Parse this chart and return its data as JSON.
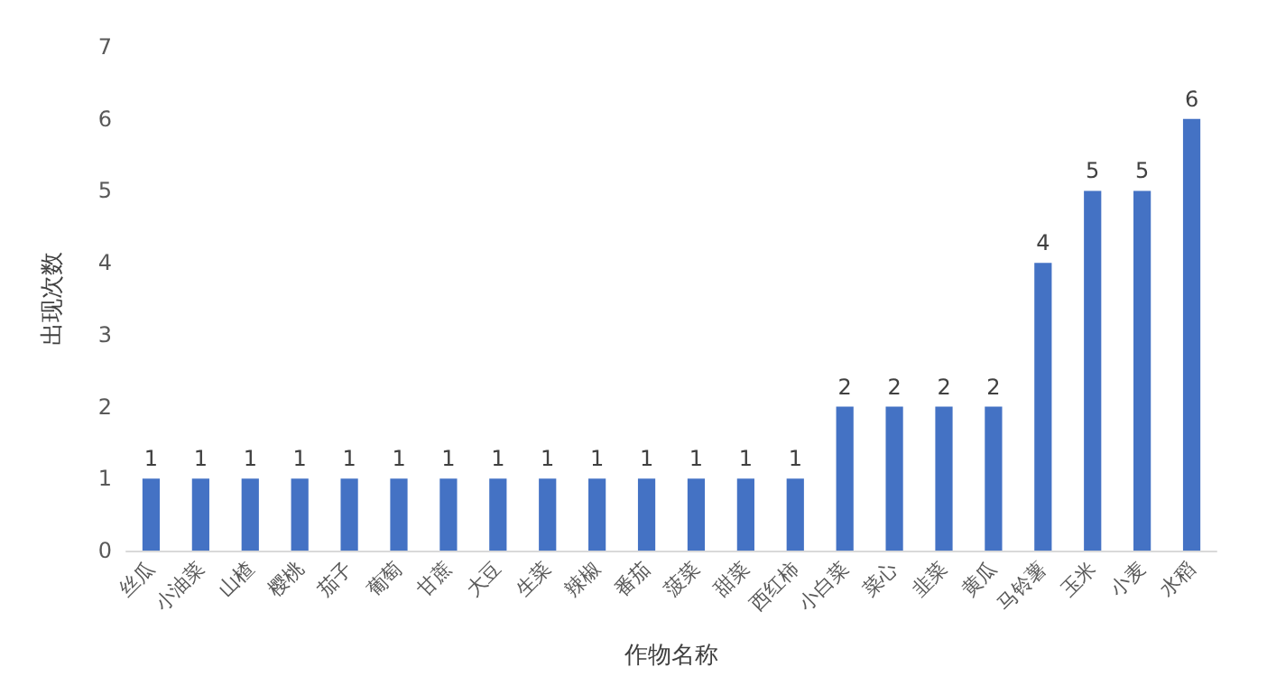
{
  "chart_data": {
    "type": "bar",
    "xlabel": "作物名称",
    "ylabel": "出现次数",
    "categories": [
      "丝瓜",
      "小油菜",
      "山楂",
      "樱桃",
      "茄子",
      "葡萄",
      "甘蔗",
      "大豆",
      "生菜",
      "辣椒",
      "番茄",
      "菠菜",
      "甜菜",
      "西红柿",
      "小白菜",
      "菜心",
      "韭菜",
      "黄瓜",
      "马铃薯",
      "玉米",
      "小麦",
      "水稻"
    ],
    "values": [
      1,
      1,
      1,
      1,
      1,
      1,
      1,
      1,
      1,
      1,
      1,
      1,
      1,
      1,
      2,
      2,
      2,
      2,
      4,
      5,
      5,
      6
    ],
    "color": "#4472c4",
    "ylim": [
      0,
      7
    ],
    "yticks": [
      0,
      1,
      2,
      3,
      4,
      5,
      6,
      7
    ],
    "grid": false,
    "data_labels": true
  }
}
